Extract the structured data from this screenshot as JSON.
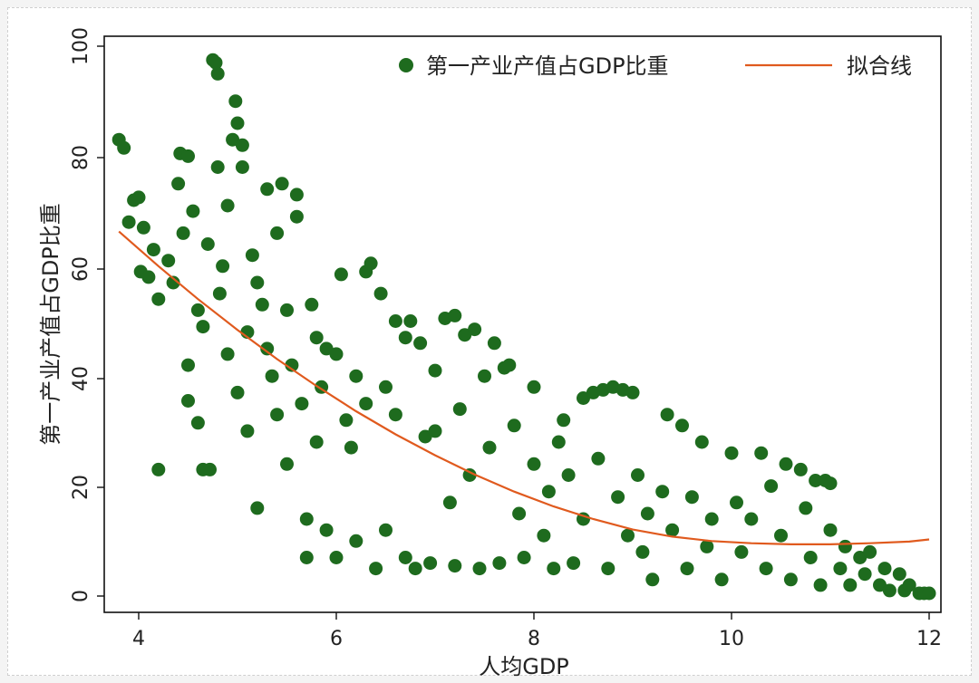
{
  "chart_data": {
    "type": "scatter",
    "title": "",
    "xlabel": "人均GDP",
    "ylabel": "第一产业产值占GDP比重",
    "xlim": [
      3.7,
      12.1
    ],
    "ylim": [
      0,
      102
    ],
    "x_ticks": [
      "4",
      "6",
      "8",
      "10",
      "12"
    ],
    "y_ticks": [
      "0",
      "20",
      "40",
      "60",
      "80",
      "100"
    ],
    "grid": false,
    "legend_position": "top-right",
    "colors": {
      "points": "#1e6b1e",
      "fit_line": "#e05a1e",
      "axis": "#111111"
    },
    "series": [
      {
        "name": "第一产业产值占GDP比重",
        "marker": "circle",
        "points": [
          [
            3.8,
            83
          ],
          [
            3.85,
            81.5
          ],
          [
            3.9,
            68
          ],
          [
            3.95,
            72
          ],
          [
            4.0,
            72.5
          ],
          [
            4.02,
            59
          ],
          [
            4.05,
            67
          ],
          [
            4.1,
            58
          ],
          [
            4.15,
            63
          ],
          [
            4.2,
            23
          ],
          [
            4.2,
            54
          ],
          [
            4.3,
            61
          ],
          [
            4.35,
            57
          ],
          [
            4.4,
            75
          ],
          [
            4.42,
            80.5
          ],
          [
            4.45,
            66
          ],
          [
            4.5,
            80
          ],
          [
            4.5,
            42
          ],
          [
            4.5,
            35.5
          ],
          [
            4.55,
            70
          ],
          [
            4.6,
            31.5
          ],
          [
            4.6,
            52
          ],
          [
            4.65,
            49
          ],
          [
            4.65,
            23
          ],
          [
            4.7,
            64
          ],
          [
            4.72,
            23
          ],
          [
            4.75,
            97.5
          ],
          [
            4.78,
            97
          ],
          [
            4.8,
            95
          ],
          [
            4.8,
            78
          ],
          [
            4.82,
            55
          ],
          [
            4.85,
            60
          ],
          [
            4.9,
            71
          ],
          [
            4.9,
            44
          ],
          [
            4.95,
            83
          ],
          [
            4.98,
            90
          ],
          [
            5.0,
            37
          ],
          [
            5.0,
            86
          ],
          [
            5.05,
            78
          ],
          [
            5.05,
            82
          ],
          [
            5.1,
            30
          ],
          [
            5.1,
            48
          ],
          [
            5.15,
            62
          ],
          [
            5.2,
            57
          ],
          [
            5.2,
            16
          ],
          [
            5.25,
            53
          ],
          [
            5.3,
            74
          ],
          [
            5.3,
            45
          ],
          [
            5.35,
            40
          ],
          [
            5.4,
            66
          ],
          [
            5.4,
            33
          ],
          [
            5.45,
            75
          ],
          [
            5.5,
            52
          ],
          [
            5.5,
            24
          ],
          [
            5.55,
            42
          ],
          [
            5.6,
            69
          ],
          [
            5.6,
            73
          ],
          [
            5.65,
            35
          ],
          [
            5.7,
            7
          ],
          [
            5.7,
            14
          ],
          [
            5.75,
            53
          ],
          [
            5.8,
            47
          ],
          [
            5.8,
            28
          ],
          [
            5.85,
            38
          ],
          [
            5.9,
            12
          ],
          [
            5.9,
            45
          ],
          [
            6.0,
            7
          ],
          [
            6.0,
            44
          ],
          [
            6.05,
            58.5
          ],
          [
            6.1,
            32
          ],
          [
            6.15,
            27
          ],
          [
            6.2,
            10
          ],
          [
            6.2,
            40
          ],
          [
            6.3,
            59
          ],
          [
            6.3,
            35
          ],
          [
            6.35,
            60.5
          ],
          [
            6.4,
            5
          ],
          [
            6.45,
            55
          ],
          [
            6.5,
            12
          ],
          [
            6.5,
            38
          ],
          [
            6.6,
            50
          ],
          [
            6.6,
            33
          ],
          [
            6.7,
            7
          ],
          [
            6.7,
            47
          ],
          [
            6.75,
            50
          ],
          [
            6.8,
            5
          ],
          [
            6.85,
            46
          ],
          [
            6.9,
            29
          ],
          [
            6.95,
            6
          ],
          [
            7.0,
            30
          ],
          [
            7.0,
            41
          ],
          [
            7.1,
            50.5
          ],
          [
            7.15,
            17
          ],
          [
            7.2,
            5.5
          ],
          [
            7.2,
            51
          ],
          [
            7.25,
            34
          ],
          [
            7.3,
            47.5
          ],
          [
            7.35,
            22
          ],
          [
            7.4,
            48.5
          ],
          [
            7.45,
            5
          ],
          [
            7.5,
            40
          ],
          [
            7.55,
            27
          ],
          [
            7.6,
            46
          ],
          [
            7.65,
            6
          ],
          [
            7.7,
            41.5
          ],
          [
            7.75,
            42
          ],
          [
            7.8,
            31
          ],
          [
            7.85,
            15
          ],
          [
            7.9,
            7
          ],
          [
            8.0,
            38
          ],
          [
            8.0,
            24
          ],
          [
            8.1,
            11
          ],
          [
            8.15,
            19
          ],
          [
            8.2,
            5
          ],
          [
            8.25,
            28
          ],
          [
            8.3,
            32
          ],
          [
            8.35,
            22
          ],
          [
            8.4,
            6
          ],
          [
            8.5,
            36
          ],
          [
            8.5,
            14
          ],
          [
            8.6,
            37
          ],
          [
            8.65,
            25
          ],
          [
            8.7,
            37.5
          ],
          [
            8.75,
            5
          ],
          [
            8.8,
            38
          ],
          [
            8.85,
            18
          ],
          [
            8.9,
            37.5
          ],
          [
            8.95,
            11
          ],
          [
            9.0,
            37
          ],
          [
            9.05,
            22
          ],
          [
            9.1,
            8
          ],
          [
            9.15,
            15
          ],
          [
            9.2,
            3
          ],
          [
            9.3,
            19
          ],
          [
            9.35,
            33
          ],
          [
            9.4,
            12
          ],
          [
            9.5,
            31
          ],
          [
            9.55,
            5
          ],
          [
            9.6,
            18
          ],
          [
            9.7,
            28
          ],
          [
            9.75,
            9
          ],
          [
            9.8,
            14
          ],
          [
            9.9,
            3
          ],
          [
            10.0,
            26
          ],
          [
            10.05,
            17
          ],
          [
            10.1,
            8
          ],
          [
            10.2,
            14
          ],
          [
            10.3,
            26
          ],
          [
            10.35,
            5
          ],
          [
            10.4,
            20
          ],
          [
            10.5,
            11
          ],
          [
            10.55,
            24
          ],
          [
            10.6,
            3
          ],
          [
            10.7,
            23
          ],
          [
            10.75,
            16
          ],
          [
            10.8,
            7
          ],
          [
            10.85,
            21
          ],
          [
            10.9,
            2
          ],
          [
            10.95,
            21
          ],
          [
            11.0,
            20.5
          ],
          [
            11.0,
            12
          ],
          [
            11.1,
            5
          ],
          [
            11.15,
            9
          ],
          [
            11.2,
            2
          ],
          [
            11.3,
            7
          ],
          [
            11.35,
            4
          ],
          [
            11.4,
            8
          ],
          [
            11.5,
            2
          ],
          [
            11.55,
            5
          ],
          [
            11.6,
            1
          ],
          [
            11.7,
            4
          ],
          [
            11.75,
            1
          ],
          [
            11.8,
            2
          ],
          [
            11.9,
            0.5
          ],
          [
            11.95,
            0.5
          ],
          [
            12.0,
            0.5
          ]
        ]
      },
      {
        "name": "拟合线",
        "type": "line",
        "x": [
          3.8,
          4.2,
          4.6,
          5.0,
          5.4,
          5.8,
          6.2,
          6.6,
          7.0,
          7.4,
          7.8,
          8.2,
          8.6,
          9.0,
          9.4,
          9.8,
          10.2,
          10.6,
          11.0,
          11.4,
          11.8,
          12.0
        ],
        "values": [
          66.3,
          60.0,
          54.0,
          48.4,
          43.1,
          38.2,
          33.6,
          29.4,
          25.6,
          22.1,
          19.0,
          16.3,
          14.0,
          12.1,
          10.8,
          10.0,
          9.6,
          9.4,
          9.4,
          9.6,
          9.9,
          10.3
        ]
      }
    ]
  }
}
